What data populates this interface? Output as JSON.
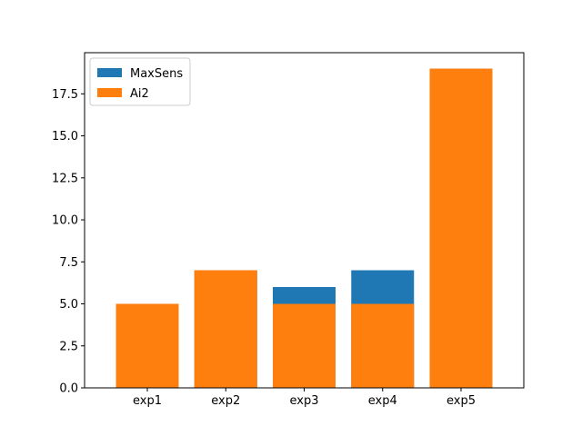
{
  "chart_data": {
    "type": "bar",
    "categories": [
      "exp1",
      "exp2",
      "exp3",
      "exp4",
      "exp5"
    ],
    "series": [
      {
        "name": "MaxSens",
        "color": "#1f77b4",
        "values": [
          5,
          7,
          6,
          7,
          19
        ]
      },
      {
        "name": "Ai2",
        "color": "#ff7f0e",
        "values": [
          5,
          7,
          5,
          5,
          19
        ]
      }
    ],
    "overlay": true,
    "title": "",
    "xlabel": "",
    "ylabel": "",
    "ylim": [
      0,
      19.95
    ],
    "yticks": [
      0,
      2.5,
      5,
      7.5,
      10,
      12.5,
      15,
      17.5
    ],
    "ytick_labels": [
      "0.0",
      "2.5",
      "5.0",
      "7.5",
      "10.0",
      "12.5",
      "15.0",
      "17.5"
    ],
    "grid": false,
    "legend_position": "top-left"
  }
}
